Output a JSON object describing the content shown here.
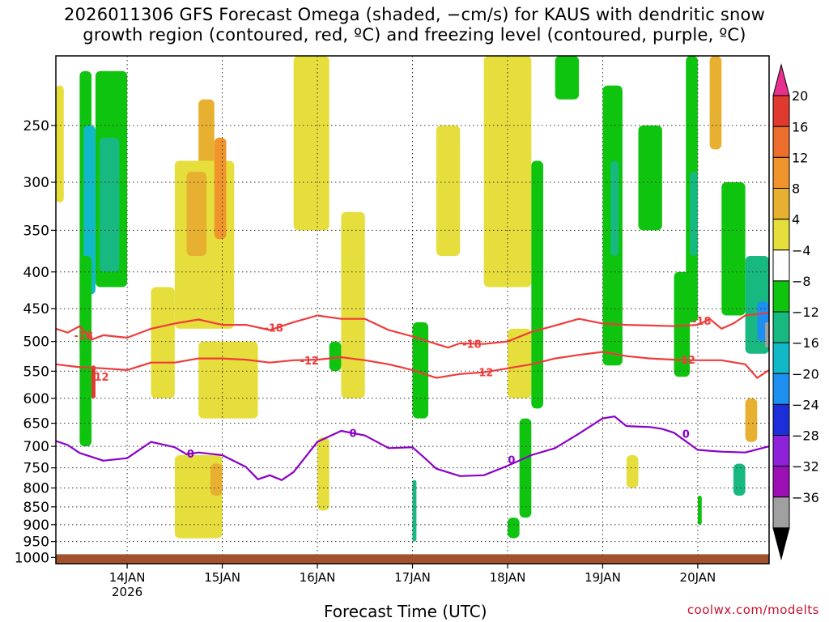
{
  "title": {
    "line1": "2026011306 GFS Forecast Omega (shaded, −cm/s) for KAUS with dendritic snow",
    "line2": "growth region (contoured, red, ºC) and freezing level (contoured, purple, ºC)"
  },
  "credit": "coolwx.com/modelts",
  "colors": {
    "ground": "#a0522d",
    "dgz_contour": "#ef3b3b",
    "freezing_contour": "#8b00c9"
  },
  "chart_data": {
    "type": "heatmap",
    "xlabel": "Forecast Time (UTC)",
    "ylabel": "",
    "y_scale": "pressure (log), inverted",
    "ylim": [
      1020,
      200
    ],
    "xlim": [
      "2026-01-13 06Z",
      "2026-01-20 18Z"
    ],
    "x_ticks": [
      {
        "label": "14JAN",
        "sublabel": "2026",
        "time": "2026-01-14 00Z"
      },
      {
        "label": "15JAN",
        "sublabel": "",
        "time": "2026-01-15 00Z"
      },
      {
        "label": "16JAN",
        "sublabel": "",
        "time": "2026-01-16 00Z"
      },
      {
        "label": "17JAN",
        "sublabel": "",
        "time": "2026-01-17 00Z"
      },
      {
        "label": "18JAN",
        "sublabel": "",
        "time": "2026-01-18 00Z"
      },
      {
        "label": "19JAN",
        "sublabel": "",
        "time": "2026-01-19 00Z"
      },
      {
        "label": "20JAN",
        "sublabel": "",
        "time": "2026-01-20 00Z"
      }
    ],
    "y_ticks": [
      "250",
      "300",
      "350",
      "400",
      "450",
      "500",
      "550",
      "600",
      "650",
      "700",
      "750",
      "800",
      "850",
      "900",
      "950",
      "1000"
    ],
    "grid": true,
    "colorbar": {
      "labels": [
        "20",
        "16",
        "12",
        "8",
        "4",
        "−4",
        "−8",
        "−12",
        "−16",
        "−20",
        "−24",
        "−28",
        "−32",
        "−36"
      ],
      "colors": [
        "#e8318f",
        "#e03a2e",
        "#ec6d2c",
        "#f0942c",
        "#e8b030",
        "#e6de3c",
        "#ffffff",
        "#0fc40f",
        "#17b981",
        "#10b8c8",
        "#1d8ff0",
        "#1c2ed9",
        "#8d22d9",
        "#9c10b5",
        "#a0a0a0",
        "#000000"
      ]
    },
    "contours": [
      {
        "label": "-18",
        "color": "dgz",
        "points": [
          [
            "2026-01-13 06Z",
            480
          ],
          [
            "2026-01-13 09Z",
            486
          ],
          [
            "2026-01-13 12Z",
            476
          ],
          [
            "2026-01-13 15Z",
            497
          ],
          [
            "2026-01-13 18Z",
            490
          ],
          [
            "2026-01-14 00Z",
            494
          ],
          [
            "2026-01-14 06Z",
            480
          ],
          [
            "2026-01-14 12Z",
            472
          ],
          [
            "2026-01-14 18Z",
            466
          ],
          [
            "2026-01-15 00Z",
            474
          ],
          [
            "2026-01-15 06Z",
            474
          ],
          [
            "2026-01-15 12Z",
            482
          ],
          [
            "2026-01-15 18Z",
            470
          ],
          [
            "2026-01-16 00Z",
            460
          ],
          [
            "2026-01-16 06Z",
            465
          ],
          [
            "2026-01-16 12Z",
            465
          ],
          [
            "2026-01-16 18Z",
            482
          ],
          [
            "2026-01-17 00Z",
            492
          ],
          [
            "2026-01-17 06Z",
            504
          ],
          [
            "2026-01-17 09Z",
            510
          ],
          [
            "2026-01-17 12Z",
            503
          ],
          [
            "2026-01-17 18Z",
            504
          ],
          [
            "2026-01-18 00Z",
            500
          ],
          [
            "2026-01-18 06Z",
            485
          ],
          [
            "2026-01-18 12Z",
            475
          ],
          [
            "2026-01-18 18Z",
            465
          ],
          [
            "2026-01-19 00Z",
            472
          ],
          [
            "2026-01-19 06Z",
            474
          ],
          [
            "2026-01-19 12Z",
            475
          ],
          [
            "2026-01-19 18Z",
            476
          ],
          [
            "2026-01-20 00Z",
            474
          ],
          [
            "2026-01-20 03Z",
            465
          ],
          [
            "2026-01-20 06Z",
            480
          ],
          [
            "2026-01-20 09Z",
            472
          ],
          [
            "2026-01-20 12Z",
            460
          ],
          [
            "2026-01-20 18Z",
            456
          ]
        ]
      },
      {
        "label": "-12",
        "color": "dgz",
        "points": [
          [
            "2026-01-13 06Z",
            538
          ],
          [
            "2026-01-13 12Z",
            543
          ],
          [
            "2026-01-13 18Z",
            545
          ],
          [
            "2026-01-14 00Z",
            548
          ],
          [
            "2026-01-14 06Z",
            535
          ],
          [
            "2026-01-14 12Z",
            535
          ],
          [
            "2026-01-14 18Z",
            528
          ],
          [
            "2026-01-15 00Z",
            528
          ],
          [
            "2026-01-15 06Z",
            530
          ],
          [
            "2026-01-15 12Z",
            535
          ],
          [
            "2026-01-15 18Z",
            531
          ],
          [
            "2026-01-16 00Z",
            530
          ],
          [
            "2026-01-16 06Z",
            526
          ],
          [
            "2026-01-16 12Z",
            531
          ],
          [
            "2026-01-16 18Z",
            538
          ],
          [
            "2026-01-17 00Z",
            548
          ],
          [
            "2026-01-17 06Z",
            562
          ],
          [
            "2026-01-17 12Z",
            555
          ],
          [
            "2026-01-17 18Z",
            552
          ],
          [
            "2026-01-18 00Z",
            545
          ],
          [
            "2026-01-18 06Z",
            538
          ],
          [
            "2026-01-18 12Z",
            528
          ],
          [
            "2026-01-18 18Z",
            522
          ],
          [
            "2026-01-19 00Z",
            517
          ],
          [
            "2026-01-19 06Z",
            524
          ],
          [
            "2026-01-19 12Z",
            528
          ],
          [
            "2026-01-19 18Z",
            530
          ],
          [
            "2026-01-20 00Z",
            531
          ],
          [
            "2026-01-20 06Z",
            531
          ],
          [
            "2026-01-20 12Z",
            538
          ],
          [
            "2026-01-20 15Z",
            562
          ],
          [
            "2026-01-20 18Z",
            548
          ]
        ]
      },
      {
        "label": "0",
        "color": "freezing",
        "points": [
          [
            "2026-01-13 06Z",
            688
          ],
          [
            "2026-01-13 09Z",
            697
          ],
          [
            "2026-01-13 12Z",
            715
          ],
          [
            "2026-01-13 18Z",
            733
          ],
          [
            "2026-01-14 00Z",
            727
          ],
          [
            "2026-01-14 06Z",
            690
          ],
          [
            "2026-01-14 12Z",
            702
          ],
          [
            "2026-01-14 15Z",
            718
          ],
          [
            "2026-01-14 18Z",
            714
          ],
          [
            "2026-01-15 00Z",
            720
          ],
          [
            "2026-01-15 06Z",
            748
          ],
          [
            "2026-01-15 09Z",
            778
          ],
          [
            "2026-01-15 12Z",
            768
          ],
          [
            "2026-01-15 15Z",
            780
          ],
          [
            "2026-01-15 18Z",
            760
          ],
          [
            "2026-01-16 00Z",
            690
          ],
          [
            "2026-01-16 06Z",
            666
          ],
          [
            "2026-01-16 12Z",
            676
          ],
          [
            "2026-01-16 18Z",
            704
          ],
          [
            "2026-01-17 00Z",
            702
          ],
          [
            "2026-01-17 03Z",
            726
          ],
          [
            "2026-01-17 06Z",
            752
          ],
          [
            "2026-01-17 12Z",
            770
          ],
          [
            "2026-01-17 18Z",
            768
          ],
          [
            "2026-01-18 00Z",
            745
          ],
          [
            "2026-01-18 06Z",
            720
          ],
          [
            "2026-01-18 12Z",
            704
          ],
          [
            "2026-01-18 18Z",
            672
          ],
          [
            "2026-01-19 00Z",
            640
          ],
          [
            "2026-01-19 03Z",
            636
          ],
          [
            "2026-01-19 06Z",
            656
          ],
          [
            "2026-01-19 12Z",
            658
          ],
          [
            "2026-01-19 15Z",
            662
          ],
          [
            "2026-01-19 18Z",
            670
          ],
          [
            "2026-01-20 00Z",
            708
          ],
          [
            "2026-01-20 06Z",
            712
          ],
          [
            "2026-01-20 12Z",
            714
          ],
          [
            "2026-01-20 18Z",
            700
          ]
        ]
      }
    ],
    "contour_labels": [
      {
        "text": "-18",
        "at": [
          "2026-01-13 13Z",
          490
        ],
        "color": "dgz"
      },
      {
        "text": "-18",
        "at": [
          "2026-01-15 13Z",
          478
        ],
        "color": "dgz"
      },
      {
        "text": "-18",
        "at": [
          "2026-01-17 15Z",
          504
        ],
        "color": "dgz"
      },
      {
        "text": "-18",
        "at": [
          "2026-01-20 01Z",
          468
        ],
        "color": "dgz"
      },
      {
        "text": "-12",
        "at": [
          "2026-01-13 17Z",
          560
        ],
        "color": "dgz"
      },
      {
        "text": "-12",
        "at": [
          "2026-01-15 22Z",
          531
        ],
        "color": "dgz"
      },
      {
        "text": "-12",
        "at": [
          "2026-01-17 18Z",
          552
        ],
        "color": "dgz"
      },
      {
        "text": "-12",
        "at": [
          "2026-01-19 21Z",
          530
        ],
        "color": "dgz"
      },
      {
        "text": "0",
        "at": [
          "2026-01-14 16Z",
          716
        ],
        "color": "freezing"
      },
      {
        "text": "0",
        "at": [
          "2026-01-16 09Z",
          670
        ],
        "color": "freezing"
      },
      {
        "text": "0",
        "at": [
          "2026-01-18 01Z",
          730
        ],
        "color": "freezing"
      },
      {
        "text": "0",
        "at": [
          "2026-01-19 21Z",
          672
        ],
        "color": "freezing"
      }
    ],
    "omega_regions": [
      {
        "t": [
          "2026-01-13 12Z",
          "2026-01-13 15Z"
        ],
        "p": [
          210,
          700
        ],
        "val": -8
      },
      {
        "t": [
          "2026-01-13 13Z",
          "2026-01-13 16Z"
        ],
        "p": [
          250,
          430
        ],
        "val": -16
      },
      {
        "t": [
          "2026-01-13 16Z",
          "2026-01-14 00Z"
        ],
        "p": [
          210,
          420
        ],
        "val": -8
      },
      {
        "t": [
          "2026-01-13 17Z",
          "2026-01-13 22Z"
        ],
        "p": [
          260,
          400
        ],
        "val": -12
      },
      {
        "t": [
          "2026-01-13 12Z",
          "2026-01-13 15Z"
        ],
        "p": [
          380,
          520
        ],
        "val": -8
      },
      {
        "t": [
          "2026-01-14 18Z",
          "2026-01-14 22Z"
        ],
        "p": [
          230,
          330
        ],
        "val": 8
      },
      {
        "t": [
          "2026-01-14 12Z",
          "2026-01-15 03Z"
        ],
        "p": [
          280,
          480
        ],
        "val": 4
      },
      {
        "t": [
          "2026-01-14 15Z",
          "2026-01-14 20Z"
        ],
        "p": [
          290,
          380
        ],
        "val": 8
      },
      {
        "t": [
          "2026-01-14 22Z",
          "2026-01-15 01Z"
        ],
        "p": [
          260,
          360
        ],
        "val": 12
      },
      {
        "t": [
          "2026-01-13 06Z",
          "2026-01-13 08Z"
        ],
        "p": [
          220,
          320
        ],
        "val": 4
      },
      {
        "t": [
          "2026-01-13 15Z",
          "2026-01-13 16Z"
        ],
        "p": [
          540,
          600
        ],
        "val": 20
      },
      {
        "t": [
          "2026-01-14 06Z",
          "2026-01-14 12Z"
        ],
        "p": [
          420,
          600
        ],
        "val": 4
      },
      {
        "t": [
          "2026-01-14 18Z",
          "2026-01-15 09Z"
        ],
        "p": [
          500,
          640
        ],
        "val": 4
      },
      {
        "t": [
          "2026-01-14 12Z",
          "2026-01-15 00Z"
        ],
        "p": [
          720,
          940
        ],
        "val": 4
      },
      {
        "t": [
          "2026-01-14 21Z",
          "2026-01-15 00Z"
        ],
        "p": [
          740,
          820
        ],
        "val": 8
      },
      {
        "t": [
          "2026-01-15 18Z",
          "2026-01-16 03Z"
        ],
        "p": [
          200,
          350
        ],
        "val": 4
      },
      {
        "t": [
          "2026-01-16 06Z",
          "2026-01-16 12Z"
        ],
        "p": [
          330,
          600
        ],
        "val": 4
      },
      {
        "t": [
          "2026-01-17 06Z",
          "2026-01-17 12Z"
        ],
        "p": [
          250,
          380
        ],
        "val": 4
      },
      {
        "t": [
          "2026-01-17 18Z",
          "2026-01-18 06Z"
        ],
        "p": [
          200,
          420
        ],
        "val": 4
      },
      {
        "t": [
          "2026-01-18 00Z",
          "2026-01-18 06Z"
        ],
        "p": [
          480,
          600
        ],
        "val": 4
      },
      {
        "t": [
          "2026-01-16 03Z",
          "2026-01-16 06Z"
        ],
        "p": [
          500,
          550
        ],
        "val": -8
      },
      {
        "t": [
          "2026-01-17 00Z",
          "2026-01-17 04Z"
        ],
        "p": [
          470,
          640
        ],
        "val": -8
      },
      {
        "t": [
          "2026-01-17 00Z",
          "2026-01-17 01Z"
        ],
        "p": [
          780,
          950
        ],
        "val": -12
      },
      {
        "t": [
          "2026-01-18 06Z",
          "2026-01-18 09Z"
        ],
        "p": [
          280,
          620
        ],
        "val": -8
      },
      {
        "t": [
          "2026-01-18 12Z",
          "2026-01-18 18Z"
        ],
        "p": [
          200,
          230
        ],
        "val": -8
      },
      {
        "t": [
          "2026-01-19 00Z",
          "2026-01-19 05Z"
        ],
        "p": [
          220,
          540
        ],
        "val": -8
      },
      {
        "t": [
          "2026-01-19 02Z",
          "2026-01-19 04Z"
        ],
        "p": [
          280,
          380
        ],
        "val": -12
      },
      {
        "t": [
          "2026-01-19 09Z",
          "2026-01-19 15Z"
        ],
        "p": [
          250,
          350
        ],
        "val": -8
      },
      {
        "t": [
          "2026-01-19 21Z",
          "2026-01-20 00Z"
        ],
        "p": [
          200,
          470
        ],
        "val": -8
      },
      {
        "t": [
          "2026-01-19 22Z",
          "2026-01-20 00Z"
        ],
        "p": [
          290,
          380
        ],
        "val": -12
      },
      {
        "t": [
          "2026-01-20 03Z",
          "2026-01-20 06Z"
        ],
        "p": [
          200,
          270
        ],
        "val": 8
      },
      {
        "t": [
          "2026-01-20 06Z",
          "2026-01-20 12Z"
        ],
        "p": [
          300,
          460
        ],
        "val": -8
      },
      {
        "t": [
          "2026-01-20 12Z",
          "2026-01-20 18Z"
        ],
        "p": [
          380,
          520
        ],
        "val": -12
      },
      {
        "t": [
          "2026-01-20 15Z",
          "2026-01-20 18Z"
        ],
        "p": [
          440,
          500
        ],
        "val": -20
      },
      {
        "t": [
          "2026-01-20 17Z",
          "2026-01-20 18Z"
        ],
        "p": [
          470,
          510
        ],
        "val": -32
      },
      {
        "t": [
          "2026-01-20 12Z",
          "2026-01-20 15Z"
        ],
        "p": [
          600,
          690
        ],
        "val": 8
      },
      {
        "t": [
          "2026-01-20 09Z",
          "2026-01-20 12Z"
        ],
        "p": [
          740,
          820
        ],
        "val": -12
      },
      {
        "t": [
          "2026-01-20 00Z",
          "2026-01-20 01Z"
        ],
        "p": [
          820,
          900
        ],
        "val": -8
      },
      {
        "t": [
          "2026-01-19 18Z",
          "2026-01-19 22Z"
        ],
        "p": [
          400,
          560
        ],
        "val": -8
      },
      {
        "t": [
          "2026-01-16 00Z",
          "2026-01-16 03Z"
        ],
        "p": [
          680,
          860
        ],
        "val": 4
      },
      {
        "t": [
          "2026-01-18 03Z",
          "2026-01-18 06Z"
        ],
        "p": [
          640,
          880
        ],
        "val": -8
      },
      {
        "t": [
          "2026-01-18 00Z",
          "2026-01-18 03Z"
        ],
        "p": [
          880,
          940
        ],
        "val": -8
      },
      {
        "t": [
          "2026-01-19 06Z",
          "2026-01-19 09Z"
        ],
        "p": [
          720,
          800
        ],
        "val": 4
      }
    ]
  }
}
